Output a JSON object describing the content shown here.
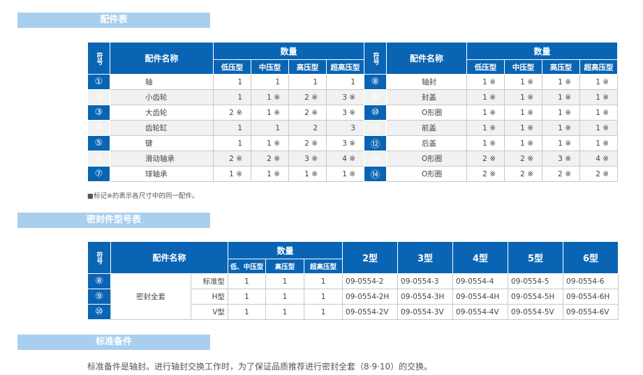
{
  "sections": {
    "parts": "配件表",
    "seals": "密封件型号表",
    "spare": "标准备件"
  },
  "parts_table": {
    "headers": {
      "symbol": "符号",
      "name": "配件名称",
      "quantity": "数量",
      "types": [
        "低压型",
        "中压型",
        "高压型",
        "超高压型"
      ]
    },
    "left_rows": [
      {
        "sym": "①",
        "name": "轴",
        "q": [
          "1",
          "1",
          "1",
          "1"
        ]
      },
      {
        "sym": "②",
        "name": "小齿轮",
        "q": [
          "1",
          "1 ※",
          "2 ※",
          "3 ※"
        ]
      },
      {
        "sym": "③",
        "name": "大齿轮",
        "q": [
          "2 ※",
          "1 ※",
          "2 ※",
          "3 ※"
        ]
      },
      {
        "sym": "④",
        "name": "齿轮缸",
        "q": [
          "1",
          "1",
          "2",
          "3"
        ]
      },
      {
        "sym": "⑤",
        "name": "键",
        "q": [
          "1",
          "1 ※",
          "2 ※",
          "3 ※"
        ]
      },
      {
        "sym": "⑥",
        "name": "滑动轴承",
        "q": [
          "2 ※",
          "2 ※",
          "3 ※",
          "4 ※"
        ]
      },
      {
        "sym": "⑦",
        "name": "球轴承",
        "q": [
          "1 ※",
          "1 ※",
          "1 ※",
          "1 ※"
        ]
      }
    ],
    "right_rows": [
      {
        "sym": "⑧",
        "name": "轴封",
        "q": [
          "1 ※",
          "1 ※",
          "1 ※",
          "1 ※"
        ]
      },
      {
        "sym": "⑨",
        "name": "封盖",
        "q": [
          "1 ※",
          "1 ※",
          "1 ※",
          "1 ※"
        ]
      },
      {
        "sym": "⑩",
        "name": "O形圈",
        "q": [
          "1 ※",
          "1 ※",
          "1 ※",
          "1 ※"
        ]
      },
      {
        "sym": "⑪",
        "name": "前盖",
        "q": [
          "1 ※",
          "1 ※",
          "1 ※",
          "1 ※"
        ]
      },
      {
        "sym": "⑫",
        "name": "后盖",
        "q": [
          "1 ※",
          "1 ※",
          "1 ※",
          "1 ※"
        ]
      },
      {
        "sym": "⑬",
        "name": "O形圈",
        "q": [
          "2 ※",
          "2 ※",
          "3 ※",
          "4 ※"
        ]
      },
      {
        "sym": "⑭",
        "name": "O形圈",
        "q": [
          "2 ※",
          "2 ※",
          "2 ※",
          "2 ※"
        ]
      }
    ],
    "note": "■标记※的表示各尺寸中的同一配件。"
  },
  "seal_table": {
    "headers": {
      "symbol": "符号",
      "name": "配件名称",
      "quantity": "数量",
      "qtypes": [
        "低、中压型",
        "高压型",
        "超高压型"
      ],
      "models": [
        "2型",
        "3型",
        "4型",
        "5型",
        "6型"
      ]
    },
    "group_name": "密封全套",
    "rows": [
      {
        "sym": "⑧",
        "sub": "标准型",
        "q": [
          "1",
          "1",
          "1"
        ],
        "codes": [
          "09-0554-2",
          "09-0554-3",
          "09-0554-4",
          "09-0554-5",
          "09-0554-6"
        ]
      },
      {
        "sym": "⑨",
        "sub": "H型",
        "q": [
          "1",
          "1",
          "1"
        ],
        "codes": [
          "09-0554-2H",
          "09-0554-3H",
          "09-0554-4H",
          "09-0554-5H",
          "09-0554-6H"
        ]
      },
      {
        "sym": "⑩",
        "sub": "V型",
        "q": [
          "1",
          "1",
          "1"
        ],
        "codes": [
          "09-0554-2V",
          "09-0554-3V",
          "09-0554-4V",
          "09-0554-5V",
          "09-0554-6V"
        ]
      }
    ]
  },
  "spare_text": "标准备件是轴封。进行轴封交换工作时，为了保证品质推荐进行密封全套（8·9·10）的交换。",
  "colors": {
    "header": "#0a64b4",
    "section_bar": "#a9cfee"
  }
}
